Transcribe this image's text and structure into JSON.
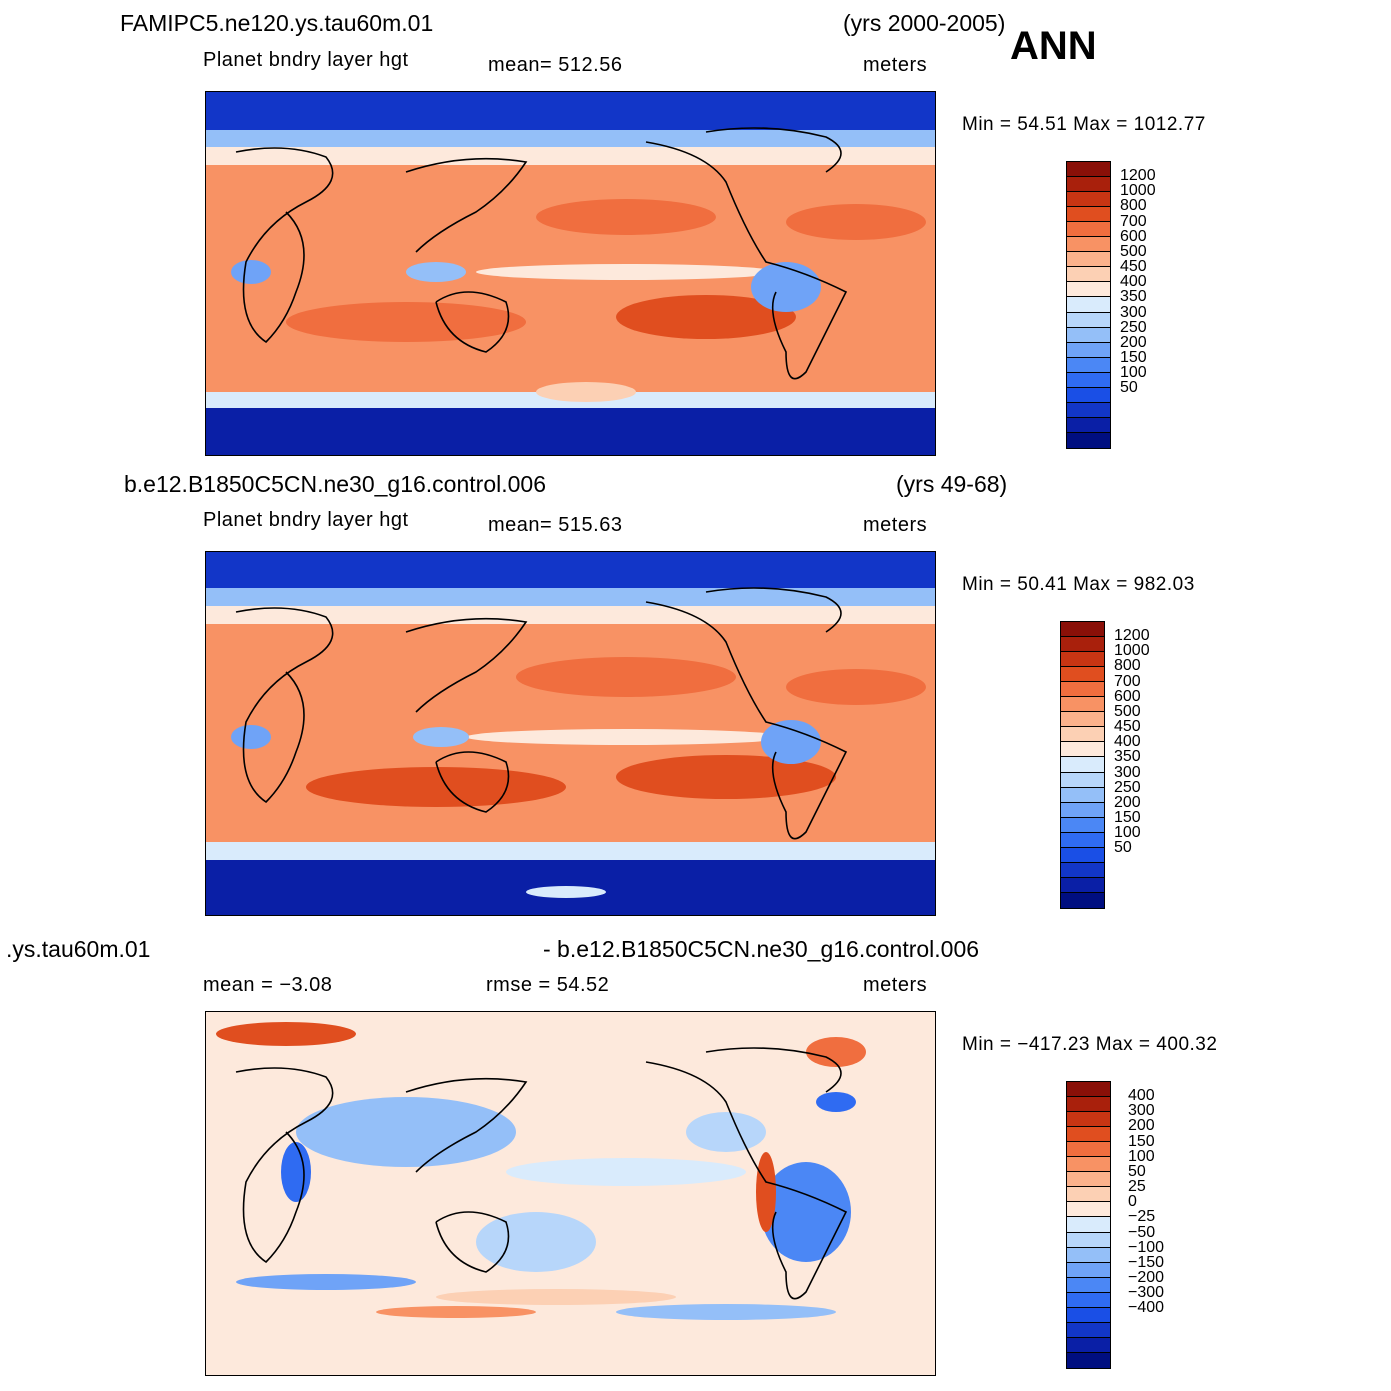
{
  "season": "ANN",
  "palette_abs": [
    "#000e80",
    "#0a1fa6",
    "#1236c8",
    "#1a4fe6",
    "#2f6bf2",
    "#4b87f5",
    "#6fa3f7",
    "#94bff8",
    "#b7d6fa",
    "#d9ebfc",
    "#fde9dc",
    "#fcd0b4",
    "#fbb28c",
    "#f89264",
    "#f06e3f",
    "#e04e1f",
    "#c83513",
    "#a9200c",
    "#8a1008"
  ],
  "palette_diff": [
    "#000e80",
    "#0a1fa6",
    "#1236c8",
    "#1a4fe6",
    "#2f6bf2",
    "#4b87f5",
    "#6fa3f7",
    "#94bff8",
    "#b7d6fa",
    "#d9ebfc",
    "#fde9dc",
    "#fcd0b4",
    "#fbb28c",
    "#f89264",
    "#f06e3f",
    "#e04e1f",
    "#c83513",
    "#a9200c",
    "#8a1008"
  ],
  "panels": [
    {
      "case_name": "FAMIPC5.ne120.ys.tau60m.01",
      "years": "(yrs 2000-2005)",
      "variable": "Planet  bndry  layer  hgt",
      "stat": "mean=  512.56",
      "units": "meters",
      "minmax": "Min  =    54.51  Max  =  1012.77",
      "colorbar_labels": [
        "1200",
        "1000",
        "800",
        "700",
        "600",
        "500",
        "450",
        "400",
        "350",
        "300",
        "250",
        "200",
        "150",
        "100",
        "50"
      ]
    },
    {
      "case_name": "b.e12.B1850C5CN.ne30_g16.control.006",
      "years": "(yrs 49-68)",
      "variable": "Planet  bndry  layer  hgt",
      "stat": "mean=  515.63",
      "units": "meters",
      "minmax": "Min  =    50.41  Max  =  982.03",
      "colorbar_labels": [
        "1200",
        "1000",
        "800",
        "700",
        "600",
        "500",
        "450",
        "400",
        "350",
        "300",
        "250",
        "200",
        "150",
        "100",
        "50"
      ]
    },
    {
      "case_name": ".ys.tau60m.01",
      "case_name_right": "- b.e12.B1850C5CN.ne30_g16.control.006",
      "mean_label": "mean  =    −3.08",
      "rmse_label": "rmse  =    54.52",
      "units": "meters",
      "minmax": "Min  =  −417.23  Max  =  400.32",
      "colorbar_labels": [
        "400",
        "300",
        "200",
        "150",
        "100",
        "50",
        "25",
        "0",
        "−25",
        "−50",
        "−100",
        "−150",
        "−200",
        "−300",
        "−400"
      ]
    }
  ],
  "chart_data": [
    {
      "type": "heatmap",
      "title": "FAMIPC5.ne120.ys.tau60m.01",
      "subtitle": "Planet  bndry  layer  hgt",
      "units": "meters",
      "mean": 512.56,
      "min": 54.51,
      "max": 1012.77,
      "levels": [
        50,
        100,
        150,
        200,
        250,
        300,
        350,
        400,
        450,
        500,
        600,
        700,
        800,
        1000,
        1200
      ]
    },
    {
      "type": "heatmap",
      "title": "b.e12.B1850C5CN.ne30_g16.control.006",
      "subtitle": "Planet  bndry  layer  hgt",
      "units": "meters",
      "mean": 515.63,
      "min": 50.41,
      "max": 982.03,
      "levels": [
        50,
        100,
        150,
        200,
        250,
        300,
        350,
        400,
        450,
        500,
        600,
        700,
        800,
        1000,
        1200
      ]
    },
    {
      "type": "heatmap",
      "title": "- b.e12.B1850C5CN.ne30_g16.control.006",
      "units": "meters",
      "mean": -3.08,
      "rmse": 54.52,
      "min": -417.23,
      "max": 400.32,
      "levels": [
        -400,
        -300,
        -200,
        -150,
        -100,
        -50,
        -25,
        0,
        25,
        50,
        100,
        150,
        200,
        300,
        400
      ]
    }
  ]
}
